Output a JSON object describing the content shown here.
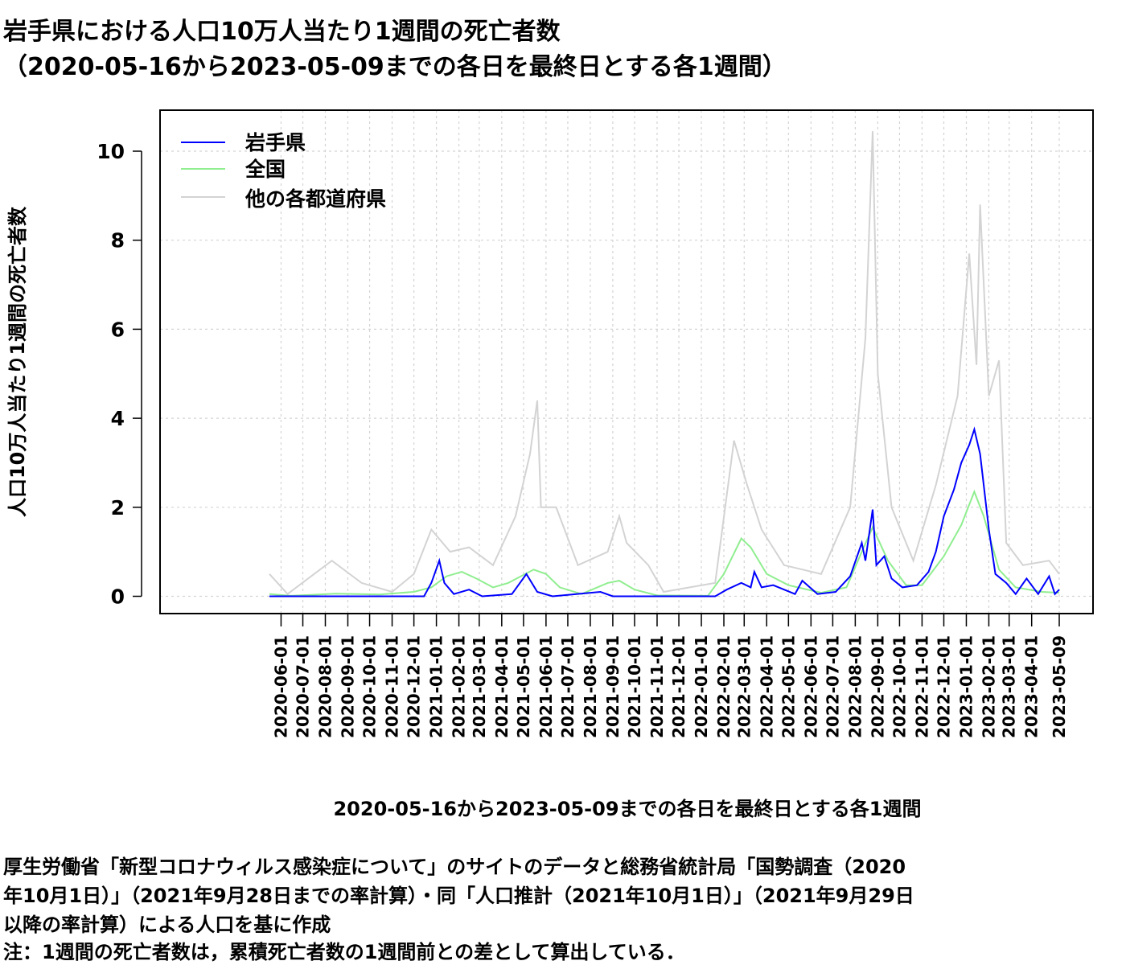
{
  "title": {
    "line1": "岩手県における人口10万人当たり1週間の死亡者数",
    "line2": "（2020-05-16から2023-05-09までの各日を最終日とする各1週間）"
  },
  "footer": {
    "source": "厚生労働省「新型コロナウィルス感染症について」のサイトのデータと総務省統計局「国勢調査（2020\n年10月1日）」（2021年9月28日までの率計算）・同「人口推計（2021年10月1日）」（2021年9月29日\n以降の率計算）による人口を基に作成",
    "note": "注：1週間の死亡者数は，累積死亡者数の1週間前との差として算出している．"
  },
  "colors": {
    "iwate": "#0000ff",
    "national": "#90ee90",
    "others": "#d3d3d3",
    "grid": "#d3d3d3"
  },
  "chart_data": {
    "type": "line",
    "title": "岩手県における人口10万人当たり1週間の死亡者数（2020-05-16から2023-05-09までの各日を最終日とする各1週間）",
    "xlabel": "2020-05-16から2023-05-09までの各日を最終日とする各1週間",
    "ylabel": "人口10万人当たり1週間の死亡者数",
    "xlim": [
      "2020-05-16",
      "2023-05-09"
    ],
    "ylim": [
      0,
      10.5
    ],
    "yticks": [
      0,
      2,
      4,
      6,
      8,
      10
    ],
    "grid": true,
    "legend_position": "top-left",
    "legend": [
      "岩手県",
      "全国",
      "他の各都道府県"
    ],
    "xtick_labels": [
      "2020-06-01",
      "2020-07-01",
      "2020-08-01",
      "2020-09-01",
      "2020-10-01",
      "2020-11-01",
      "2020-12-01",
      "2021-01-01",
      "2021-02-01",
      "2021-03-01",
      "2021-04-01",
      "2021-05-01",
      "2021-06-01",
      "2021-07-01",
      "2021-08-01",
      "2021-09-01",
      "2021-10-01",
      "2021-11-01",
      "2021-12-01",
      "2022-01-01",
      "2022-02-01",
      "2022-03-01",
      "2022-04-01",
      "2022-05-01",
      "2022-06-01",
      "2022-07-01",
      "2022-08-01",
      "2022-09-01",
      "2022-10-01",
      "2022-11-01",
      "2022-12-01",
      "2023-01-01",
      "2023-02-01",
      "2023-03-01",
      "2023-04-01",
      "2023-05-09"
    ],
    "series": [
      {
        "name": "岩手県",
        "points": [
          [
            "2020-05-16",
            0
          ],
          [
            "2020-12-15",
            0
          ],
          [
            "2020-12-25",
            0.3
          ],
          [
            "2021-01-05",
            0.8
          ],
          [
            "2021-01-12",
            0.3
          ],
          [
            "2021-01-25",
            0.05
          ],
          [
            "2021-02-15",
            0.15
          ],
          [
            "2021-03-05",
            0
          ],
          [
            "2021-04-15",
            0.05
          ],
          [
            "2021-05-05",
            0.5
          ],
          [
            "2021-05-20",
            0.1
          ],
          [
            "2021-06-10",
            0
          ],
          [
            "2021-08-15",
            0.1
          ],
          [
            "2021-09-01",
            0
          ],
          [
            "2021-10-01",
            0
          ],
          [
            "2022-01-20",
            0
          ],
          [
            "2022-02-05",
            0.15
          ],
          [
            "2022-02-25",
            0.3
          ],
          [
            "2022-03-10",
            0.2
          ],
          [
            "2022-03-15",
            0.55
          ],
          [
            "2022-03-25",
            0.2
          ],
          [
            "2022-04-10",
            0.25
          ],
          [
            "2022-04-25",
            0.15
          ],
          [
            "2022-05-10",
            0.05
          ],
          [
            "2022-05-20",
            0.35
          ],
          [
            "2022-06-10",
            0.05
          ],
          [
            "2022-07-05",
            0.1
          ],
          [
            "2022-07-25",
            0.45
          ],
          [
            "2022-08-10",
            1.2
          ],
          [
            "2022-08-15",
            0.8
          ],
          [
            "2022-08-25",
            1.95
          ],
          [
            "2022-08-30",
            0.7
          ],
          [
            "2022-09-10",
            0.9
          ],
          [
            "2022-09-20",
            0.4
          ],
          [
            "2022-10-05",
            0.2
          ],
          [
            "2022-10-25",
            0.25
          ],
          [
            "2022-11-10",
            0.55
          ],
          [
            "2022-11-20",
            1.0
          ],
          [
            "2022-12-01",
            1.8
          ],
          [
            "2022-12-15",
            2.4
          ],
          [
            "2022-12-25",
            3.0
          ],
          [
            "2023-01-05",
            3.4
          ],
          [
            "2023-01-12",
            3.75
          ],
          [
            "2023-01-20",
            3.2
          ],
          [
            "2023-02-01",
            1.5
          ],
          [
            "2023-02-10",
            0.5
          ],
          [
            "2023-02-25",
            0.3
          ],
          [
            "2023-03-10",
            0.05
          ],
          [
            "2023-03-25",
            0.4
          ],
          [
            "2023-04-10",
            0.05
          ],
          [
            "2023-04-25",
            0.45
          ],
          [
            "2023-05-03",
            0.05
          ],
          [
            "2023-05-09",
            0.15
          ]
        ]
      },
      {
        "name": "全国",
        "points": [
          [
            "2020-05-16",
            0.05
          ],
          [
            "2020-06-15",
            0.01
          ],
          [
            "2020-08-15",
            0.06
          ],
          [
            "2020-10-15",
            0.04
          ],
          [
            "2020-12-01",
            0.1
          ],
          [
            "2020-12-25",
            0.2
          ],
          [
            "2021-01-15",
            0.45
          ],
          [
            "2021-02-05",
            0.55
          ],
          [
            "2021-02-25",
            0.4
          ],
          [
            "2021-03-20",
            0.2
          ],
          [
            "2021-04-10",
            0.3
          ],
          [
            "2021-05-15",
            0.6
          ],
          [
            "2021-06-01",
            0.5
          ],
          [
            "2021-06-20",
            0.2
          ],
          [
            "2021-07-20",
            0.05
          ],
          [
            "2021-08-25",
            0.3
          ],
          [
            "2021-09-10",
            0.35
          ],
          [
            "2021-10-01",
            0.15
          ],
          [
            "2021-11-01",
            0.02
          ],
          [
            "2022-01-10",
            0.01
          ],
          [
            "2022-02-01",
            0.5
          ],
          [
            "2022-02-25",
            1.3
          ],
          [
            "2022-03-10",
            1.1
          ],
          [
            "2022-04-01",
            0.5
          ],
          [
            "2022-05-01",
            0.25
          ],
          [
            "2022-06-15",
            0.08
          ],
          [
            "2022-07-20",
            0.2
          ],
          [
            "2022-08-10",
            1.0
          ],
          [
            "2022-08-25",
            1.55
          ],
          [
            "2022-09-15",
            0.8
          ],
          [
            "2022-10-10",
            0.25
          ],
          [
            "2022-11-01",
            0.25
          ],
          [
            "2022-12-01",
            0.9
          ],
          [
            "2022-12-25",
            1.6
          ],
          [
            "2023-01-12",
            2.35
          ],
          [
            "2023-01-25",
            1.8
          ],
          [
            "2023-02-15",
            0.6
          ],
          [
            "2023-03-10",
            0.2
          ],
          [
            "2023-04-15",
            0.1
          ],
          [
            "2023-05-09",
            0.08
          ]
        ]
      },
      {
        "name": "他の各都道府県",
        "points": [
          [
            "2020-05-16",
            0.5
          ],
          [
            "2020-06-10",
            0.05
          ],
          [
            "2020-08-10",
            0.8
          ],
          [
            "2020-09-20",
            0.3
          ],
          [
            "2020-11-01",
            0.1
          ],
          [
            "2020-12-01",
            0.5
          ],
          [
            "2020-12-25",
            1.5
          ],
          [
            "2021-01-20",
            1.0
          ],
          [
            "2021-02-15",
            1.1
          ],
          [
            "2021-03-20",
            0.7
          ],
          [
            "2021-04-20",
            1.8
          ],
          [
            "2021-05-10",
            3.2
          ],
          [
            "2021-05-20",
            4.4
          ],
          [
            "2021-05-25",
            2.0
          ],
          [
            "2021-06-15",
            2.0
          ],
          [
            "2021-07-15",
            0.7
          ],
          [
            "2021-08-25",
            1.0
          ],
          [
            "2021-09-10",
            1.8
          ],
          [
            "2021-09-20",
            1.2
          ],
          [
            "2021-10-20",
            0.7
          ],
          [
            "2021-11-10",
            0.1
          ],
          [
            "2022-01-20",
            0.3
          ],
          [
            "2022-02-15",
            3.5
          ],
          [
            "2022-03-05",
            2.5
          ],
          [
            "2022-03-25",
            1.5
          ],
          [
            "2022-04-25",
            0.7
          ],
          [
            "2022-06-15",
            0.5
          ],
          [
            "2022-07-25",
            2.0
          ],
          [
            "2022-08-15",
            5.8
          ],
          [
            "2022-08-25",
            10.45
          ],
          [
            "2022-09-01",
            5.0
          ],
          [
            "2022-09-20",
            2.0
          ],
          [
            "2022-10-20",
            0.8
          ],
          [
            "2022-11-20",
            2.5
          ],
          [
            "2022-12-20",
            4.5
          ],
          [
            "2023-01-05",
            7.7
          ],
          [
            "2023-01-15",
            5.2
          ],
          [
            "2023-01-20",
            8.8
          ],
          [
            "2023-02-01",
            4.5
          ],
          [
            "2023-02-15",
            5.3
          ],
          [
            "2023-02-25",
            1.2
          ],
          [
            "2023-03-20",
            0.7
          ],
          [
            "2023-04-25",
            0.8
          ],
          [
            "2023-05-09",
            0.5
          ]
        ]
      }
    ]
  }
}
